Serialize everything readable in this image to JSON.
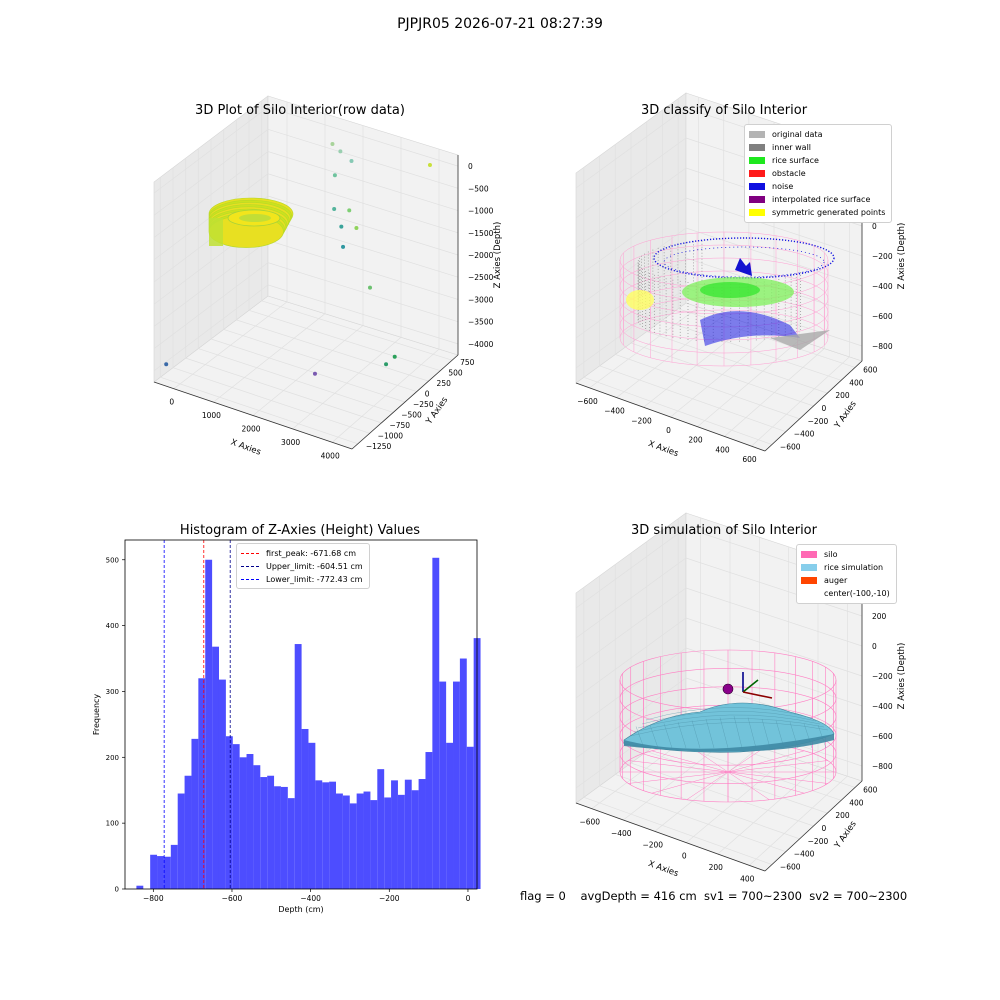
{
  "suptitle": "PJPJR05 2026-07-21 08:27:39",
  "status_text": "flag = 0    avgDepth = 416 cm  sv1 = 700~2300  sv2 = 700~2300",
  "chart_data": [
    {
      "type": "scatter3d",
      "title": "3D Plot of Silo Interior(row data)",
      "xlabel": "X Axies",
      "ylabel": "Y Axies",
      "zlabel": "Z Axies (Depth)",
      "xticks": [
        "0",
        "1000",
        "2000",
        "3000",
        "4000"
      ],
      "yticks": [
        "750",
        "500",
        "250",
        "0",
        "−250",
        "−500",
        "−750",
        "−1000",
        "−1250"
      ],
      "zticks": [
        "0",
        "−500",
        "−1000",
        "−1500",
        "−2000",
        "−2500",
        "−3000",
        "−3500",
        "−4000"
      ],
      "cluster_color": "#d6e21f",
      "outliers": [
        {
          "x": 4000,
          "y": 700,
          "z": -200,
          "color": "#c8e03a"
        },
        {
          "x": 1300,
          "y": 900,
          "z": -700,
          "color": "#a8d39a"
        },
        {
          "x": 1500,
          "y": 900,
          "z": -800,
          "color": "#9acfb0"
        },
        {
          "x": 1900,
          "y": 800,
          "z": -800,
          "color": "#86c9b4"
        },
        {
          "x": 1600,
          "y": 700,
          "z": -1100,
          "color": "#6fc39e"
        },
        {
          "x": 2200,
          "y": 500,
          "z": -1500,
          "color": "#7fcf74"
        },
        {
          "x": 2500,
          "y": 400,
          "z": -1700,
          "color": "#90d35c"
        },
        {
          "x": 1700,
          "y": 600,
          "z": -1700,
          "color": "#54b49c"
        },
        {
          "x": 2000,
          "y": 500,
          "z": -1900,
          "color": "#3aa39a"
        },
        {
          "x": 2400,
          "y": 200,
          "z": -1950,
          "color": "#2f97a0"
        },
        {
          "x": 3200,
          "y": 100,
          "z": -2500,
          "color": "#6cc170"
        },
        {
          "x": 4300,
          "y": -300,
          "z": -3300,
          "color": "#2aa05a"
        },
        {
          "x": 4200,
          "y": -400,
          "z": -3400,
          "color": "#2c9c6a"
        },
        {
          "x": 3000,
          "y": -900,
          "z": -3500,
          "color": "#7a5ab0"
        },
        {
          "x": -400,
          "y": -1200,
          "z": -4000,
          "color": "#3a6aa8"
        }
      ]
    },
    {
      "type": "scatter3d",
      "title": "3D classify of Silo Interior",
      "xlabel": "X Axies",
      "ylabel": "Y Axies",
      "zlabel": "Z Axies (Depth)",
      "xticks": [
        "−600",
        "−400",
        "−200",
        "0",
        "200",
        "400",
        "600"
      ],
      "yticks": [
        "600",
        "400",
        "200",
        "0",
        "−200",
        "−400",
        "−600"
      ],
      "zticks": [
        "400",
        "200",
        "0",
        "−200",
        "−400",
        "−600",
        "−800"
      ],
      "legend": [
        {
          "label": "original data",
          "color": "#b4b4b4"
        },
        {
          "label": "inner wall",
          "color": "#808080"
        },
        {
          "label": "rice surface",
          "color": "#1ee81e"
        },
        {
          "label": "obstacle",
          "color": "#ff1a1a"
        },
        {
          "label": "noise",
          "color": "#0f0fe0"
        },
        {
          "label": "interpolated rice surface",
          "color": "#800080"
        },
        {
          "label": "symmetric generated points",
          "color": "#ffff00"
        }
      ]
    },
    {
      "type": "bar",
      "title": "Histogram of Z-Axies (Height) Values",
      "xlabel": "Depth (cm)",
      "ylabel": "Frequency",
      "xlim": [
        -872,
        23
      ],
      "ylim": [
        0,
        530
      ],
      "xticks": [
        -800,
        -600,
        -400,
        -200,
        0
      ],
      "xtick_labels": [
        "−800",
        "−600",
        "−400",
        "−200",
        "0"
      ],
      "yticks": [
        0,
        100,
        200,
        300,
        400,
        500
      ],
      "bin_start": -843,
      "bin_width": 17.5,
      "color": "#4d4dff",
      "values": [
        5,
        0,
        52,
        50,
        49,
        67,
        145,
        172,
        228,
        320,
        500,
        368,
        318,
        232,
        220,
        200,
        205,
        188,
        170,
        172,
        156,
        155,
        138,
        372,
        243,
        222,
        165,
        162,
        163,
        145,
        142,
        130,
        145,
        148,
        135,
        182,
        139,
        165,
        143,
        166,
        150,
        167,
        208,
        503,
        315,
        222,
        315,
        350,
        216,
        381
      ],
      "vlines": [
        {
          "label": "first_peak: -671.68 cm",
          "x": -671.68,
          "color": "#ff0000"
        },
        {
          "label": "Upper_limit: -604.51 cm",
          "x": -604.51,
          "color": "#00008b"
        },
        {
          "label": "Lower_limit: -772.43 cm",
          "x": -772.43,
          "color": "#0000ff"
        }
      ]
    },
    {
      "type": "surface3d",
      "title": "3D simulation of Silo Interior",
      "xlabel": "X Axies",
      "ylabel": "Y Axies",
      "zlabel": "Z Axies (Depth)",
      "xticks": [
        "−600",
        "−400",
        "−200",
        "0",
        "200",
        "400"
      ],
      "yticks": [
        "600",
        "400",
        "200",
        "0",
        "−200",
        "−400",
        "−600"
      ],
      "zticks": [
        "400",
        "200",
        "0",
        "−200",
        "−400",
        "−600",
        "−800"
      ],
      "legend": [
        {
          "label": "silo",
          "color": "#ff69b4"
        },
        {
          "label": "rice simulation",
          "color": "#87ceeb"
        },
        {
          "label": "auger",
          "color": "#ff4500"
        },
        {
          "label": "center(-100,-10)",
          "color": ""
        }
      ]
    }
  ]
}
